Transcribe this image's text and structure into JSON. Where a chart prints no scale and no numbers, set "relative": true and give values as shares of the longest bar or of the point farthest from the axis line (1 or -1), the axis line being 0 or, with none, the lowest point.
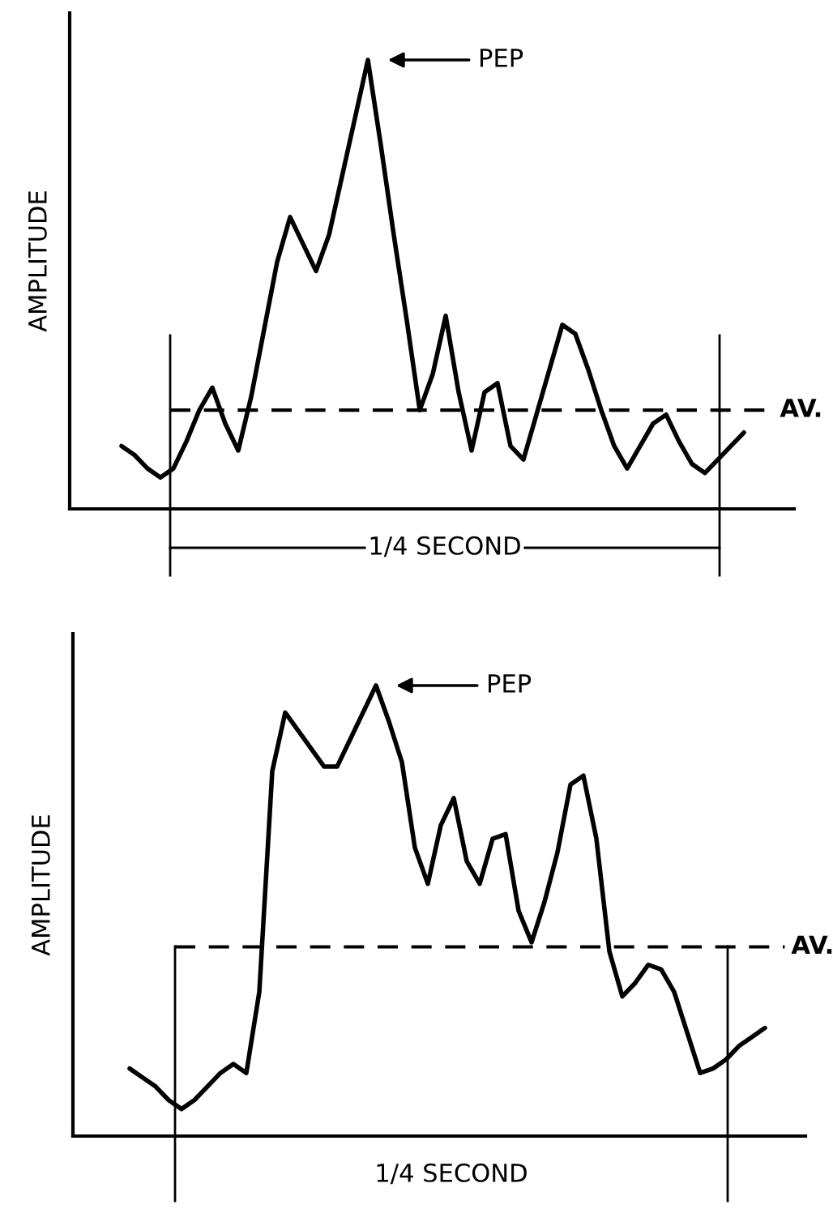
{
  "chart_data": [
    {
      "type": "line",
      "relative": true,
      "ylabel": "AMPLITUDE",
      "color": "#000000",
      "line_style": "solid",
      "marker": "none",
      "categories": [
        null,
        null,
        null,
        null,
        null,
        null,
        null,
        null,
        null,
        null,
        null,
        null,
        null,
        null,
        null,
        null,
        null,
        null,
        null,
        null,
        null,
        null,
        null,
        null,
        null,
        null,
        null,
        null,
        null,
        null,
        null,
        null,
        null,
        null,
        null,
        null,
        null,
        null,
        null,
        null,
        null,
        null,
        null,
        null,
        null,
        null,
        null,
        null,
        null
      ],
      "values": [
        0.14,
        0.12,
        0.09,
        0.07,
        0.09,
        0.15,
        0.22,
        0.27,
        0.19,
        0.13,
        0.25,
        0.4,
        0.55,
        0.65,
        0.59,
        0.53,
        0.61,
        0.74,
        0.87,
        1.0,
        0.81,
        0.61,
        0.42,
        0.22,
        0.3,
        0.43,
        0.26,
        0.13,
        0.26,
        0.28,
        0.14,
        0.11,
        0.21,
        0.31,
        0.41,
        0.39,
        0.31,
        0.22,
        0.14,
        0.09,
        0.14,
        0.19,
        0.21,
        0.15,
        0.1,
        0.08,
        0.11,
        0.14,
        0.17
      ],
      "annotations": [
        "PEP",
        "1/4 SECOND"
      ],
      "ref_lines": [
        {
          "axis": "y",
          "value": 0.22,
          "label": "AV.",
          "line_style": "dashed",
          "color": "#000000"
        }
      ]
    },
    {
      "type": "line",
      "relative": true,
      "ylabel": "AMPLITUDE",
      "color": "#000000",
      "line_style": "solid",
      "marker": "none",
      "categories": [
        null,
        null,
        null,
        null,
        null,
        null,
        null,
        null,
        null,
        null,
        null,
        null,
        null,
        null,
        null,
        null,
        null,
        null,
        null,
        null,
        null,
        null,
        null,
        null,
        null,
        null,
        null,
        null,
        null,
        null,
        null,
        null,
        null,
        null,
        null,
        null,
        null,
        null,
        null,
        null,
        null,
        null,
        null,
        null,
        null,
        null,
        null,
        null,
        null,
        null
      ],
      "values": [
        0.15,
        0.13,
        0.11,
        0.08,
        0.06,
        0.08,
        0.11,
        0.14,
        0.16,
        0.14,
        0.32,
        0.81,
        0.94,
        0.9,
        0.86,
        0.82,
        0.82,
        0.88,
        0.94,
        1.0,
        0.92,
        0.83,
        0.64,
        0.56,
        0.69,
        0.75,
        0.61,
        0.56,
        0.66,
        0.67,
        0.5,
        0.43,
        0.52,
        0.63,
        0.78,
        0.8,
        0.66,
        0.41,
        0.31,
        0.34,
        0.38,
        0.37,
        0.32,
        0.23,
        0.14,
        0.15,
        0.17,
        0.2,
        0.22,
        0.24
      ],
      "annotations": [
        "PEP",
        "1/4 SECOND"
      ],
      "ref_lines": [
        {
          "axis": "y",
          "value": 0.42,
          "label": "AV.",
          "line_style": "dashed",
          "color": "#000000"
        }
      ]
    }
  ]
}
